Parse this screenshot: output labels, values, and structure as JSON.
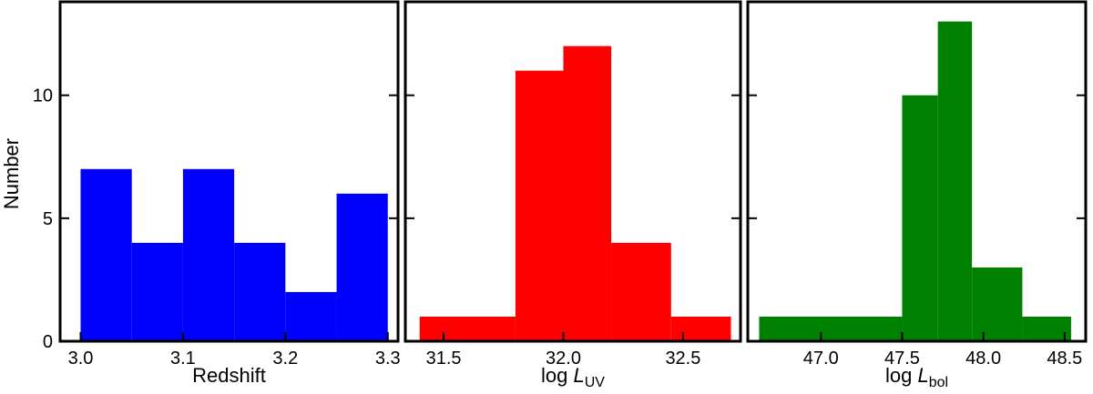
{
  "shared": {
    "ylabel": "Number",
    "ylim": [
      0,
      13.8
    ],
    "yticks": [
      0,
      5,
      10
    ],
    "ytick_labels": [
      "0",
      "5",
      "10"
    ]
  },
  "chart_data": [
    {
      "type": "bar",
      "xlabel": "Redshift",
      "xlabel_sub": "",
      "xlim": [
        2.98,
        3.31
      ],
      "xticks": [
        3.0,
        3.1,
        3.2,
        3.3
      ],
      "xtick_labels": [
        "3.0",
        "3.1",
        "3.2",
        "3.3"
      ],
      "color": "#0000ff",
      "bins": [
        {
          "x0": 3.0,
          "x1": 3.05,
          "value": 7
        },
        {
          "x0": 3.05,
          "x1": 3.1,
          "value": 4
        },
        {
          "x0": 3.1,
          "x1": 3.15,
          "value": 7
        },
        {
          "x0": 3.15,
          "x1": 3.2,
          "value": 4
        },
        {
          "x0": 3.2,
          "x1": 3.25,
          "value": 2
        },
        {
          "x0": 3.25,
          "x1": 3.3,
          "value": 6
        }
      ]
    },
    {
      "type": "bar",
      "xlabel": "log L",
      "xlabel_sub": "UV",
      "xlim": [
        31.34,
        32.74
      ],
      "xticks": [
        31.5,
        32.0,
        32.5
      ],
      "xtick_labels": [
        "31.5",
        "32.0",
        "32.5"
      ],
      "color": "#ff0000",
      "bins": [
        {
          "x0": 31.4,
          "x1": 31.8,
          "value": 1
        },
        {
          "x0": 31.8,
          "x1": 32.0,
          "value": 11
        },
        {
          "x0": 32.0,
          "x1": 32.2,
          "value": 12
        },
        {
          "x0": 32.2,
          "x1": 32.45,
          "value": 4
        },
        {
          "x0": 32.45,
          "x1": 32.7,
          "value": 1
        }
      ]
    },
    {
      "type": "bar",
      "xlabel": "log L",
      "xlabel_sub": "bol",
      "xlim": [
        46.55,
        48.63
      ],
      "xticks": [
        47.0,
        47.5,
        48.0,
        48.5
      ],
      "xtick_labels": [
        "47.0",
        "47.5",
        "48.0",
        "48.5"
      ],
      "color": "#008000",
      "bins": [
        {
          "x0": 46.62,
          "x1": 47.5,
          "value": 1
        },
        {
          "x0": 47.5,
          "x1": 47.72,
          "value": 10
        },
        {
          "x0": 47.72,
          "x1": 47.93,
          "value": 13
        },
        {
          "x0": 47.93,
          "x1": 48.24,
          "value": 3
        },
        {
          "x0": 48.24,
          "x1": 48.54,
          "value": 1
        }
      ]
    }
  ]
}
